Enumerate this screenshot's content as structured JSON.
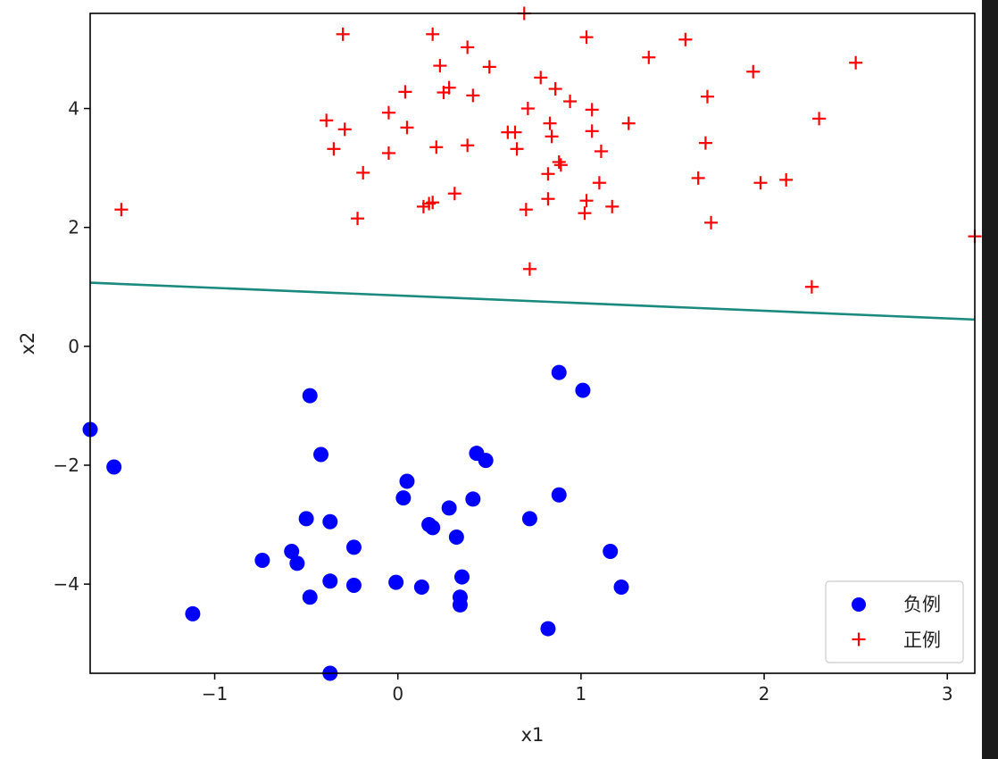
{
  "chart_data": {
    "type": "scatter",
    "title": "",
    "xlabel": "x1",
    "ylabel": "x2",
    "xlim": [
      -1.68,
      3.15
    ],
    "ylim": [
      -5.5,
      5.6
    ],
    "xticks": [
      -1,
      0,
      1,
      2,
      3
    ],
    "yticks": [
      -4,
      -2,
      0,
      2,
      4
    ],
    "xtick_labels": [
      "−1",
      "0",
      "1",
      "2",
      "3"
    ],
    "ytick_labels": [
      "−4",
      "−2",
      "0",
      "2",
      "4"
    ],
    "grid": false,
    "legend_position": "bottom-right",
    "series": [
      {
        "name": "负例",
        "marker": "circle",
        "color": "#0000ff",
        "points": [
          [
            -1.68,
            -1.4
          ],
          [
            -1.55,
            -2.03
          ],
          [
            -1.12,
            -4.5
          ],
          [
            -0.74,
            -3.6
          ],
          [
            -0.58,
            -3.45
          ],
          [
            -0.55,
            -3.65
          ],
          [
            -0.5,
            -2.9
          ],
          [
            -0.48,
            -4.22
          ],
          [
            -0.48,
            -0.83
          ],
          [
            -0.42,
            -1.82
          ],
          [
            -0.37,
            -2.95
          ],
          [
            -0.37,
            -3.95
          ],
          [
            -0.37,
            -5.5
          ],
          [
            -0.24,
            -3.38
          ],
          [
            -0.24,
            -4.02
          ],
          [
            -0.01,
            -3.97
          ],
          [
            0.03,
            -2.55
          ],
          [
            0.05,
            -2.27
          ],
          [
            0.13,
            -4.05
          ],
          [
            0.17,
            -3.0
          ],
          [
            0.19,
            -3.05
          ],
          [
            0.28,
            -2.72
          ],
          [
            0.32,
            -3.21
          ],
          [
            0.34,
            -4.22
          ],
          [
            0.34,
            -4.35
          ],
          [
            0.35,
            -3.88
          ],
          [
            0.41,
            -2.57
          ],
          [
            0.43,
            -1.8
          ],
          [
            0.48,
            -1.92
          ],
          [
            0.72,
            -2.9
          ],
          [
            0.82,
            -4.75
          ],
          [
            0.88,
            -2.5
          ],
          [
            0.88,
            -0.44
          ],
          [
            1.01,
            -0.74
          ],
          [
            1.16,
            -3.45
          ],
          [
            1.22,
            -4.05
          ]
        ]
      },
      {
        "name": "正例",
        "marker": "plus",
        "color": "#ff0000",
        "points": [
          [
            -1.51,
            2.3
          ],
          [
            -0.39,
            3.8
          ],
          [
            -0.35,
            3.32
          ],
          [
            -0.3,
            5.25
          ],
          [
            -0.29,
            3.65
          ],
          [
            -0.22,
            2.15
          ],
          [
            -0.19,
            2.92
          ],
          [
            -0.05,
            3.93
          ],
          [
            -0.05,
            3.25
          ],
          [
            0.04,
            4.28
          ],
          [
            0.05,
            3.68
          ],
          [
            0.14,
            2.35
          ],
          [
            0.17,
            2.4
          ],
          [
            0.19,
            2.42
          ],
          [
            0.19,
            5.25
          ],
          [
            0.21,
            3.35
          ],
          [
            0.23,
            4.72
          ],
          [
            0.25,
            4.27
          ],
          [
            0.28,
            4.35
          ],
          [
            0.31,
            2.57
          ],
          [
            0.38,
            5.03
          ],
          [
            0.38,
            3.38
          ],
          [
            0.41,
            4.22
          ],
          [
            0.5,
            4.7
          ],
          [
            0.6,
            3.6
          ],
          [
            0.64,
            3.6
          ],
          [
            0.65,
            3.32
          ],
          [
            0.69,
            5.6
          ],
          [
            0.7,
            2.3
          ],
          [
            0.71,
            4.0
          ],
          [
            0.72,
            1.3
          ],
          [
            0.78,
            4.52
          ],
          [
            0.82,
            2.48
          ],
          [
            0.82,
            2.9
          ],
          [
            0.83,
            3.75
          ],
          [
            0.84,
            3.53
          ],
          [
            0.86,
            4.33
          ],
          [
            0.88,
            3.1
          ],
          [
            0.89,
            3.05
          ],
          [
            0.94,
            4.12
          ],
          [
            1.02,
            2.24
          ],
          [
            1.03,
            2.45
          ],
          [
            1.03,
            5.2
          ],
          [
            1.06,
            3.98
          ],
          [
            1.06,
            3.62
          ],
          [
            1.1,
            2.75
          ],
          [
            1.11,
            3.28
          ],
          [
            1.17,
            2.35
          ],
          [
            1.26,
            3.75
          ],
          [
            1.37,
            4.86
          ],
          [
            1.57,
            5.16
          ],
          [
            1.64,
            2.83
          ],
          [
            1.68,
            3.42
          ],
          [
            1.69,
            4.2
          ],
          [
            1.71,
            2.08
          ],
          [
            1.94,
            4.62
          ],
          [
            1.98,
            2.75
          ],
          [
            2.12,
            2.8
          ],
          [
            2.26,
            1.0
          ],
          [
            2.3,
            3.83
          ],
          [
            2.5,
            4.77
          ],
          [
            3.15,
            1.85
          ]
        ]
      }
    ],
    "line": {
      "name": "decision-boundary",
      "color": "#1a8a7e",
      "points": [
        [
          -1.68,
          1.07
        ],
        [
          3.15,
          0.45
        ]
      ]
    }
  }
}
